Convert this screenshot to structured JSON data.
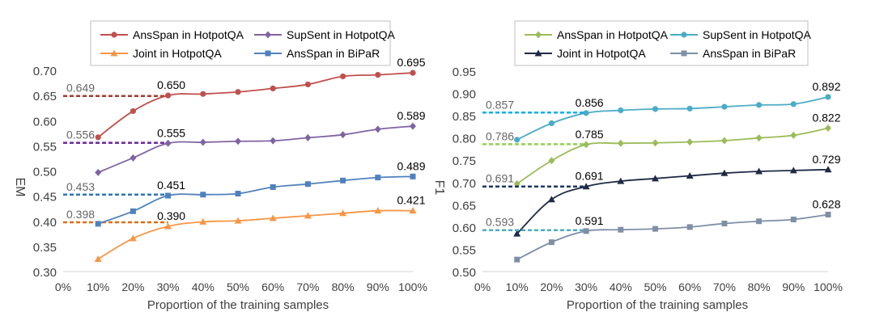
{
  "chart_data": [
    {
      "type": "line",
      "ylabel": "EM",
      "xlabel": "Proportion of the training samples",
      "categories": [
        "10%",
        "20%",
        "30%",
        "40%",
        "50%",
        "60%",
        "70%",
        "80%",
        "90%",
        "100%"
      ],
      "x_ticks": [
        "0%",
        "10%",
        "20%",
        "30%",
        "40%",
        "50%",
        "60%",
        "70%",
        "80%",
        "90%",
        "100%"
      ],
      "y_ticks": [
        "0.30",
        "0.35",
        "0.40",
        "0.45",
        "0.50",
        "0.55",
        "0.60",
        "0.65",
        "0.70"
      ],
      "ylim": [
        0.3,
        0.7
      ],
      "legend_position": "top",
      "series": [
        {
          "name": "AnsSpan in HotpotQA",
          "color": "#c0504d",
          "marker": "circle",
          "values": [
            0.567,
            0.619,
            0.65,
            0.653,
            0.657,
            0.664,
            0.672,
            0.688,
            0.691,
            0.695
          ],
          "labels": [
            {
              "index": 2,
              "text": "0.650"
            },
            {
              "index": 9,
              "text": "0.695"
            }
          ],
          "baseline": 0.649,
          "baseline_label": "0.649",
          "baseline_color": "#a43a2a"
        },
        {
          "name": "SupSent in HotpotQA",
          "color": "#8064a2",
          "marker": "diamond",
          "values": [
            0.497,
            0.526,
            0.555,
            0.557,
            0.559,
            0.56,
            0.566,
            0.572,
            0.583,
            0.589
          ],
          "labels": [
            {
              "index": 2,
              "text": "0.555"
            },
            {
              "index": 9,
              "text": "0.589"
            }
          ],
          "baseline": 0.556,
          "baseline_label": "0.556",
          "baseline_color": "#7030a0"
        },
        {
          "name": "Joint in HotpotQA",
          "color": "#f79646",
          "marker": "triangle",
          "values": [
            0.325,
            0.366,
            0.39,
            0.399,
            0.401,
            0.406,
            0.411,
            0.416,
            0.421,
            0.421
          ],
          "labels": [
            {
              "index": 2,
              "text": "0.390"
            },
            {
              "index": 9,
              "text": "0.421"
            }
          ],
          "baseline": 0.398,
          "baseline_label": "0.398",
          "baseline_color": "#e46c0a"
        },
        {
          "name": "AnsSpan in BiPaR",
          "color": "#4f81bd",
          "marker": "square",
          "values": [
            0.395,
            0.42,
            0.451,
            0.453,
            0.455,
            0.468,
            0.474,
            0.481,
            0.487,
            0.489
          ],
          "labels": [
            {
              "index": 2,
              "text": "0.451"
            },
            {
              "index": 9,
              "text": "0.489"
            }
          ],
          "baseline": 0.453,
          "baseline_label": "0.453",
          "baseline_color": "#2e75b6"
        }
      ]
    },
    {
      "type": "line",
      "ylabel": "F1",
      "xlabel": "Proportion of the training samples",
      "categories": [
        "10%",
        "20%",
        "30%",
        "40%",
        "50%",
        "60%",
        "70%",
        "80%",
        "90%",
        "100%"
      ],
      "x_ticks": [
        "0%",
        "10%",
        "20%",
        "30%",
        "40%",
        "50%",
        "60%",
        "70%",
        "80%",
        "90%",
        "100%"
      ],
      "y_ticks": [
        "0.50",
        "0.55",
        "0.60",
        "0.65",
        "0.70",
        "0.75",
        "0.80",
        "0.85",
        "0.90",
        "0.95"
      ],
      "ylim": [
        0.5,
        0.95
      ],
      "legend_position": "top",
      "series": [
        {
          "name": "AnsSpan in HotpotQA",
          "color": "#9bbb59",
          "marker": "diamond",
          "values": [
            0.697,
            0.749,
            0.785,
            0.788,
            0.789,
            0.791,
            0.794,
            0.8,
            0.806,
            0.822
          ],
          "labels": [
            {
              "index": 2,
              "text": "0.785"
            },
            {
              "index": 9,
              "text": "0.822"
            }
          ],
          "baseline": 0.786,
          "baseline_label": "0.786",
          "baseline_color": "#92d050"
        },
        {
          "name": "SupSent in HotpotQA",
          "color": "#4bacc6",
          "marker": "circle",
          "values": [
            0.796,
            0.833,
            0.856,
            0.862,
            0.865,
            0.866,
            0.87,
            0.874,
            0.876,
            0.892
          ],
          "labels": [
            {
              "index": 2,
              "text": "0.856"
            },
            {
              "index": 9,
              "text": "0.892"
            }
          ],
          "baseline": 0.857,
          "baseline_label": "0.857",
          "baseline_color": "#00b0f0"
        },
        {
          "name": "Joint in HotpotQA",
          "color": "#1f2a44",
          "marker": "triangle",
          "values": [
            0.585,
            0.662,
            0.691,
            0.703,
            0.709,
            0.715,
            0.721,
            0.725,
            0.727,
            0.729
          ],
          "labels": [
            {
              "index": 2,
              "text": "0.691"
            },
            {
              "index": 9,
              "text": "0.729"
            }
          ],
          "baseline": 0.691,
          "baseline_label": "0.691",
          "baseline_color": "#1f3864"
        },
        {
          "name": "AnsSpan in BiPaR",
          "color": "#7f8fa6",
          "marker": "square",
          "values": [
            0.527,
            0.566,
            0.591,
            0.594,
            0.596,
            0.6,
            0.608,
            0.613,
            0.617,
            0.628
          ],
          "labels": [
            {
              "index": 2,
              "text": "0.591"
            },
            {
              "index": 9,
              "text": "0.628"
            }
          ],
          "baseline": 0.593,
          "baseline_label": "0.593",
          "baseline_color": "#4bacc6"
        }
      ]
    }
  ]
}
